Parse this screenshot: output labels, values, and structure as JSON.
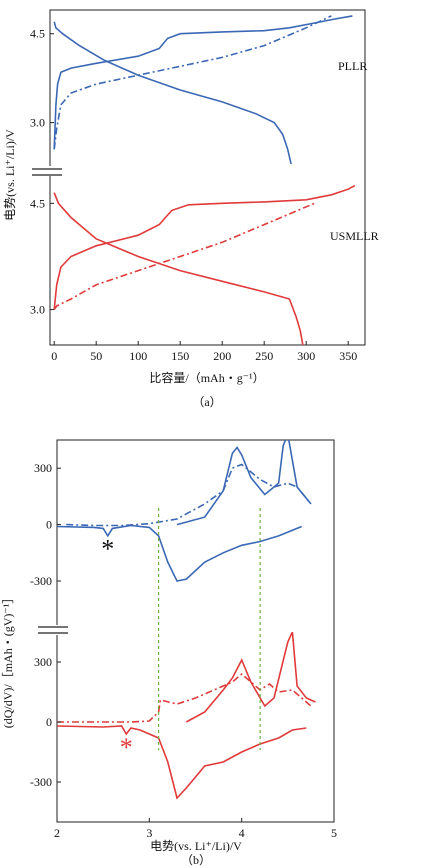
{
  "colors": {
    "blue": "#3b68b5",
    "red": "#e03a3a",
    "green": "#6bb33c",
    "axis": "#222222"
  },
  "panel_a": {
    "caption": "（a）",
    "xlabel": "比容量/（mAh・g⁻¹）",
    "ylabel": "电势(vs. Li⁺/Li)/V",
    "label_top": "PLLR",
    "label_bottom": "USMLLR"
  },
  "panel_b": {
    "caption": "（b）",
    "xlabel": "电势(vs. Li⁺/Li)/V",
    "ylabel": "(dQ/dV)/［mAh・(gV)⁻¹］",
    "marker": "*"
  },
  "chart_data": [
    {
      "type": "line",
      "panel": "a",
      "xlabel": "比容量/（mAh・g⁻¹）",
      "ylabel": "电势(vs. Li⁺/Li)/V",
      "xlim": [
        -5,
        370
      ],
      "x_ticks": [
        "0",
        "50",
        "100",
        "150",
        "200",
        "250",
        "300",
        "350"
      ],
      "subplots": [
        {
          "name": "PLLR",
          "ylim": [
            2.2,
            4.9
          ],
          "y_ticks": [
            "3.0",
            "4.5"
          ],
          "series": [
            {
              "style": "solid",
              "color": "blue",
              "points": [
                [
                  0,
                  2.55
                ],
                [
                  1,
                  2.9
                ],
                [
                  2,
                  3.3
                ],
                [
                  4,
                  3.65
                ],
                [
                  8,
                  3.85
                ],
                [
                  20,
                  3.92
                ],
                [
                  50,
                  4.0
                ],
                [
                  100,
                  4.12
                ],
                [
                  125,
                  4.25
                ],
                [
                  135,
                  4.42
                ],
                [
                  150,
                  4.5
                ],
                [
                  200,
                  4.53
                ],
                [
                  250,
                  4.55
                ],
                [
                  280,
                  4.6
                ],
                [
                  310,
                  4.68
                ],
                [
                  335,
                  4.75
                ],
                [
                  355,
                  4.8
                ]
              ]
            },
            {
              "style": "solid",
              "color": "blue",
              "points": [
                [
                  0,
                  4.7
                ],
                [
                  2,
                  4.6
                ],
                [
                  10,
                  4.5
                ],
                [
                  30,
                  4.3
                ],
                [
                  60,
                  4.05
                ],
                [
                  100,
                  3.8
                ],
                [
                  150,
                  3.55
                ],
                [
                  200,
                  3.35
                ],
                [
                  240,
                  3.15
                ],
                [
                  262,
                  3.0
                ],
                [
                  272,
                  2.8
                ],
                [
                  278,
                  2.55
                ],
                [
                  282,
                  2.3
                ]
              ]
            },
            {
              "style": "dashdot",
              "color": "blue",
              "points": [
                [
                  0,
                  2.55
                ],
                [
                  3,
                  2.9
                ],
                [
                  8,
                  3.3
                ],
                [
                  20,
                  3.5
                ],
                [
                  50,
                  3.65
                ],
                [
                  100,
                  3.8
                ],
                [
                  150,
                  3.95
                ],
                [
                  200,
                  4.1
                ],
                [
                  250,
                  4.3
                ],
                [
                  300,
                  4.6
                ],
                [
                  330,
                  4.8
                ]
              ]
            }
          ]
        },
        {
          "name": "USMLLR",
          "ylim": [
            2.5,
            4.9
          ],
          "y_ticks": [
            "3.0",
            "4.5"
          ],
          "series": [
            {
              "style": "solid",
              "color": "red",
              "points": [
                [
                  0,
                  3.0
                ],
                [
                  3,
                  3.35
                ],
                [
                  8,
                  3.6
                ],
                [
                  20,
                  3.75
                ],
                [
                  50,
                  3.9
                ],
                [
                  100,
                  4.05
                ],
                [
                  125,
                  4.2
                ],
                [
                  140,
                  4.4
                ],
                [
                  160,
                  4.48
                ],
                [
                  200,
                  4.5
                ],
                [
                  250,
                  4.52
                ],
                [
                  300,
                  4.55
                ],
                [
                  330,
                  4.62
                ],
                [
                  350,
                  4.7
                ],
                [
                  358,
                  4.75
                ]
              ]
            },
            {
              "style": "solid",
              "color": "red",
              "points": [
                [
                  0,
                  4.65
                ],
                [
                  5,
                  4.5
                ],
                [
                  20,
                  4.3
                ],
                [
                  50,
                  4.0
                ],
                [
                  100,
                  3.75
                ],
                [
                  150,
                  3.55
                ],
                [
                  200,
                  3.4
                ],
                [
                  250,
                  3.25
                ],
                [
                  280,
                  3.15
                ],
                [
                  288,
                  2.9
                ],
                [
                  293,
                  2.7
                ],
                [
                  296,
                  2.5
                ]
              ]
            },
            {
              "style": "dashdot",
              "color": "red",
              "points": [
                [
                  0,
                  3.0
                ],
                [
                  3,
                  3.05
                ],
                [
                  20,
                  3.15
                ],
                [
                  50,
                  3.35
                ],
                [
                  100,
                  3.55
                ],
                [
                  150,
                  3.75
                ],
                [
                  200,
                  3.95
                ],
                [
                  250,
                  4.2
                ],
                [
                  290,
                  4.4
                ],
                [
                  310,
                  4.5
                ]
              ]
            }
          ]
        }
      ]
    },
    {
      "type": "line",
      "panel": "b",
      "xlabel": "电势(vs. Li⁺/Li)/V",
      "ylabel": "(dQ/dV)/［mAh・(gV)⁻¹］",
      "xlim": [
        2.0,
        5.0
      ],
      "x_ticks": [
        "2",
        "3",
        "4",
        "5"
      ],
      "vlines": [
        3.1,
        4.2
      ],
      "subplots": [
        {
          "name": "top",
          "ylim": [
            -550,
            450
          ],
          "y_ticks": [
            "300",
            "0",
            "-300"
          ],
          "annotation": {
            "text": "*",
            "x": 2.55,
            "y": -80,
            "color": "black"
          },
          "series": [
            {
              "style": "dashdot",
              "color": "blue",
              "points": [
                [
                  2.1,
                  0
                ],
                [
                  2.4,
                  -5
                ],
                [
                  2.55,
                  -5
                ],
                [
                  2.7,
                  -5
                ],
                [
                  3.0,
                  5
                ],
                [
                  3.3,
                  30
                ],
                [
                  3.6,
                  110
                ],
                [
                  3.8,
                  180
                ],
                [
                  3.9,
                  300
                ],
                [
                  4.0,
                  320
                ],
                [
                  4.2,
                  240
                ],
                [
                  4.35,
                  200
                ],
                [
                  4.5,
                  220
                ],
                [
                  4.6,
                  200
                ],
                [
                  4.75,
                  110
                ]
              ]
            },
            {
              "style": "solid",
              "color": "blue",
              "points": [
                [
                  2.0,
                  -10
                ],
                [
                  2.4,
                  -15
                ],
                [
                  2.5,
                  -20
                ],
                [
                  2.55,
                  -60
                ],
                [
                  2.6,
                  -20
                ],
                [
                  2.8,
                  -5
                ],
                [
                  3.0,
                  -15
                ],
                [
                  3.1,
                  -60
                ],
                [
                  3.2,
                  -200
                ],
                [
                  3.3,
                  -300
                ],
                [
                  3.4,
                  -290
                ],
                [
                  3.6,
                  -200
                ],
                [
                  3.8,
                  -150
                ],
                [
                  4.0,
                  -110
                ],
                [
                  4.2,
                  -90
                ],
                [
                  4.4,
                  -60
                ],
                [
                  4.55,
                  -30
                ],
                [
                  4.65,
                  -10
                ]
              ]
            },
            {
              "style": "solid",
              "color": "blue",
              "points": [
                [
                  3.3,
                  0
                ],
                [
                  3.6,
                  40
                ],
                [
                  3.8,
                  180
                ],
                [
                  3.9,
                  380
                ],
                [
                  3.95,
                  410
                ],
                [
                  4.0,
                  370
                ],
                [
                  4.1,
                  250
                ],
                [
                  4.25,
                  160
                ],
                [
                  4.4,
                  220
                ],
                [
                  4.45,
                  420
                ],
                [
                  4.5,
                  480
                ],
                [
                  4.6,
                  200
                ],
                [
                  4.75,
                  110
                ]
              ]
            }
          ]
        },
        {
          "name": "bottom",
          "ylim": [
            -500,
            450
          ],
          "y_ticks": [
            "300",
            "0",
            "-300"
          ],
          "annotation": {
            "text": "*",
            "x": 2.75,
            "y": -80,
            "color": "red"
          },
          "series": [
            {
              "style": "dashdot",
              "color": "red",
              "points": [
                [
                  2.0,
                  0
                ],
                [
                  2.5,
                  0
                ],
                [
                  2.8,
                  0
                ],
                [
                  3.0,
                  5
                ],
                [
                  3.1,
                  50
                ],
                [
                  3.12,
                  110
                ],
                [
                  3.3,
                  90
                ],
                [
                  3.5,
                  120
                ],
                [
                  3.7,
                  160
                ],
                [
                  3.9,
                  200
                ],
                [
                  4.0,
                  240
                ],
                [
                  4.1,
                  200
                ],
                [
                  4.2,
                  160
                ],
                [
                  4.3,
                  190
                ],
                [
                  4.4,
                  150
                ],
                [
                  4.55,
                  160
                ],
                [
                  4.65,
                  120
                ],
                [
                  4.75,
                  80
                ]
              ]
            },
            {
              "style": "solid",
              "color": "red",
              "points": [
                [
                  2.0,
                  -20
                ],
                [
                  2.5,
                  -25
                ],
                [
                  2.7,
                  -20
                ],
                [
                  2.75,
                  -60
                ],
                [
                  2.8,
                  -30
                ],
                [
                  2.9,
                  -40
                ],
                [
                  3.0,
                  -60
                ],
                [
                  3.1,
                  -80
                ],
                [
                  3.2,
                  -200
                ],
                [
                  3.3,
                  -380
                ],
                [
                  3.4,
                  -330
                ],
                [
                  3.6,
                  -220
                ],
                [
                  3.8,
                  -200
                ],
                [
                  4.0,
                  -150
                ],
                [
                  4.2,
                  -110
                ],
                [
                  4.4,
                  -80
                ],
                [
                  4.55,
                  -40
                ],
                [
                  4.7,
                  -30
                ]
              ]
            },
            {
              "style": "solid",
              "color": "red",
              "points": [
                [
                  3.4,
                  0
                ],
                [
                  3.6,
                  50
                ],
                [
                  3.8,
                  160
                ],
                [
                  3.9,
                  220
                ],
                [
                  4.0,
                  310
                ],
                [
                  4.1,
                  200
                ],
                [
                  4.25,
                  80
                ],
                [
                  4.35,
                  120
                ],
                [
                  4.5,
                  400
                ],
                [
                  4.55,
                  450
                ],
                [
                  4.6,
                  180
                ],
                [
                  4.7,
                  120
                ],
                [
                  4.8,
                  100
                ]
              ]
            }
          ]
        }
      ]
    }
  ]
}
